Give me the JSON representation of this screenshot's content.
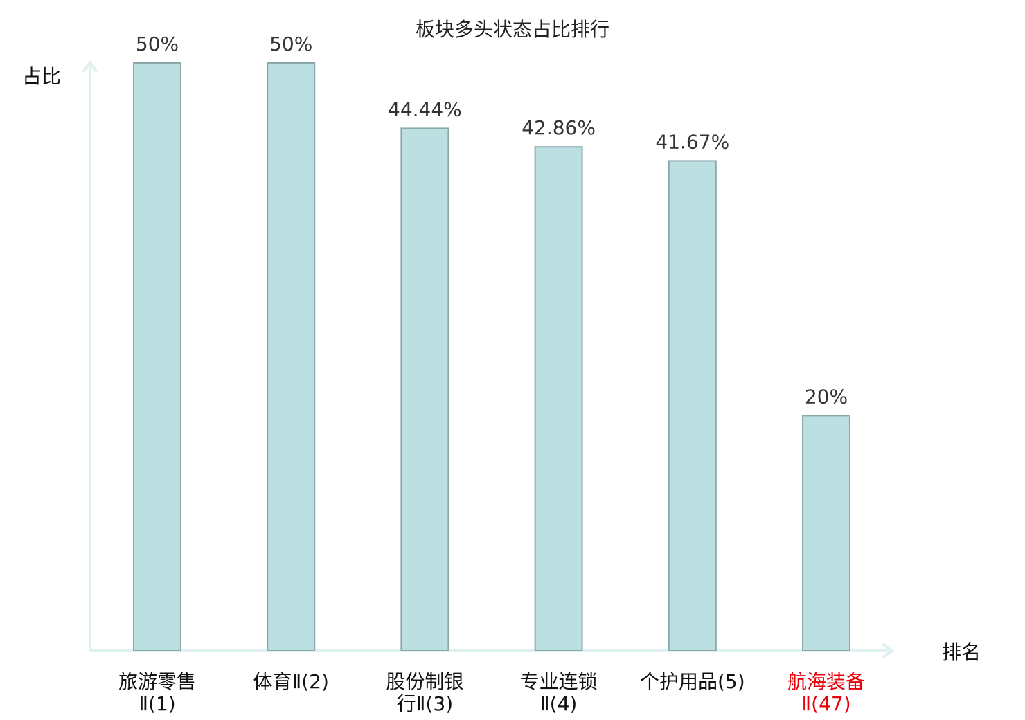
{
  "chart_data": {
    "type": "bar",
    "title": "板块多头状态占比排行",
    "ylabel": "占比",
    "xlabel": "排名",
    "categories": [
      {
        "name": "旅游零售",
        "suffix": "Ⅱ(1)"
      },
      {
        "name": "体育Ⅱ(2)",
        "suffix": ""
      },
      {
        "name": "股份制银",
        "suffix": "行Ⅱ(3)"
      },
      {
        "name": "专业连锁",
        "suffix": "Ⅱ(4)"
      },
      {
        "name": "个护用品(5)",
        "suffix": ""
      },
      {
        "name": "航海装备",
        "suffix": "Ⅱ(47)"
      }
    ],
    "values": [
      50,
      50,
      44.44,
      42.86,
      41.67,
      20
    ],
    "value_labels": [
      "50%",
      "50%",
      "44.44%",
      "42.86%",
      "41.67%",
      "20%"
    ],
    "highlight_index": 5,
    "ylim": [
      0,
      50
    ],
    "grid": false,
    "colors": {
      "bar_fill": "#bce0e2",
      "bar_stroke": "#8aa8aa",
      "axis": "#dff2ef",
      "label": "#111111",
      "highlight_label": "#e8000b",
      "value_label": "#333333"
    }
  }
}
